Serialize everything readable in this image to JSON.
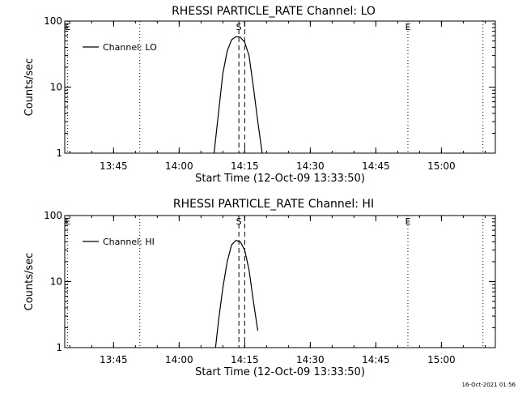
{
  "footer": {
    "timestamp": "16-Oct-2021 01:56"
  },
  "chart_data": [
    {
      "type": "line",
      "title": "RHESSI PARTICLE_RATE Channel: LO",
      "xlabel": "Start Time (12-Oct-09 13:33:50)",
      "ylabel": "Counts/sec",
      "y_scale": "log",
      "ylim": [
        1,
        100
      ],
      "xlim": [
        "13:33:50",
        "15:12:20"
      ],
      "x_ticks": [
        "13:45",
        "14:00",
        "14:15",
        "14:30",
        "14:45",
        "15:00"
      ],
      "y_ticks": [
        "1",
        "10",
        "100"
      ],
      "legend": {
        "position": "top-left"
      },
      "series": [
        {
          "name": "Channel: LO",
          "x": [
            "14:08:00",
            "14:09:00",
            "14:10:00",
            "14:11:00",
            "14:12:00",
            "14:13:00",
            "14:14:00",
            "14:15:00",
            "14:16:00",
            "14:17:00",
            "14:18:00",
            "14:19:00"
          ],
          "y": [
            1,
            4,
            16,
            35,
            52,
            58,
            57,
            48,
            30,
            10,
            3,
            1
          ]
        }
      ],
      "markers": [
        {
          "label": "E",
          "time": "13:34:30",
          "style": "dotted"
        },
        {
          "label": "",
          "time": "13:51:00",
          "style": "dotted"
        },
        {
          "label": "S",
          "time": "14:13:40",
          "style": "dashed"
        },
        {
          "label": "",
          "time": "14:15:00",
          "style": "dashed"
        },
        {
          "label": "E",
          "time": "14:52:20",
          "style": "dotted"
        },
        {
          "label": "",
          "time": "15:09:30",
          "style": "dotted"
        }
      ]
    },
    {
      "type": "line",
      "title": "RHESSI PARTICLE_RATE Channel: HI",
      "xlabel": "Start Time (12-Oct-09 13:33:50)",
      "ylabel": "Counts/sec",
      "y_scale": "log",
      "ylim": [
        1,
        100
      ],
      "xlim": [
        "13:33:50",
        "15:12:20"
      ],
      "x_ticks": [
        "13:45",
        "14:00",
        "14:15",
        "14:30",
        "14:45",
        "15:00"
      ],
      "y_ticks": [
        "1",
        "10",
        "100"
      ],
      "legend": {
        "position": "top-left"
      },
      "series": [
        {
          "name": "Channel: HI",
          "x": [
            "14:08:20",
            "14:09:00",
            "14:10:00",
            "14:11:00",
            "14:12:00",
            "14:13:00",
            "14:14:00",
            "14:15:00",
            "14:16:00",
            "14:17:00",
            "14:18:00"
          ],
          "y": [
            1,
            2.5,
            8,
            20,
            36,
            42,
            40,
            30,
            15,
            5,
            1.8
          ]
        }
      ],
      "markers": [
        {
          "label": "E",
          "time": "13:34:30",
          "style": "dotted"
        },
        {
          "label": "",
          "time": "13:51:00",
          "style": "dotted"
        },
        {
          "label": "S",
          "time": "14:13:40",
          "style": "dashed"
        },
        {
          "label": "",
          "time": "14:15:00",
          "style": "dashed"
        },
        {
          "label": "E",
          "time": "14:52:20",
          "style": "dotted"
        },
        {
          "label": "",
          "time": "15:09:30",
          "style": "dotted"
        }
      ]
    }
  ]
}
